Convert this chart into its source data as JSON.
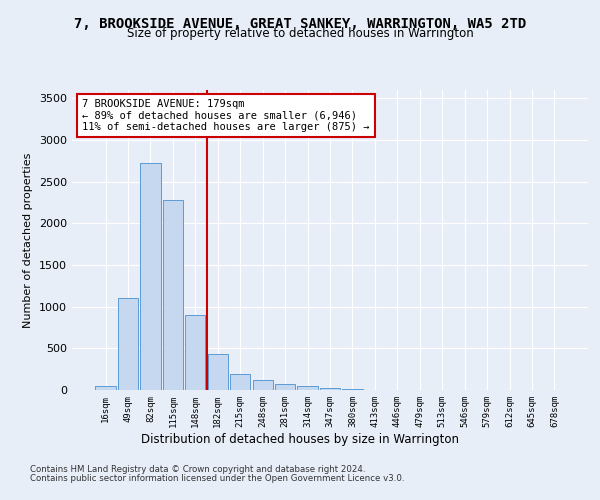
{
  "title": "7, BROOKSIDE AVENUE, GREAT SANKEY, WARRINGTON, WA5 2TD",
  "subtitle": "Size of property relative to detached houses in Warrington",
  "xlabel": "Distribution of detached houses by size in Warrington",
  "ylabel": "Number of detached properties",
  "bar_labels": [
    "16sqm",
    "49sqm",
    "82sqm",
    "115sqm",
    "148sqm",
    "182sqm",
    "215sqm",
    "248sqm",
    "281sqm",
    "314sqm",
    "347sqm",
    "380sqm",
    "413sqm",
    "446sqm",
    "479sqm",
    "513sqm",
    "546sqm",
    "579sqm",
    "612sqm",
    "645sqm",
    "678sqm"
  ],
  "bar_values": [
    50,
    1100,
    2730,
    2280,
    900,
    430,
    195,
    120,
    70,
    45,
    30,
    15,
    5,
    2,
    1,
    0,
    0,
    0,
    0,
    0,
    0
  ],
  "bar_color": "#c5d8f0",
  "bar_edge_color": "#5b9bd5",
  "vline_x": 5,
  "vline_color": "#cc0000",
  "annotation_text": "7 BROOKSIDE AVENUE: 179sqm\n← 89% of detached houses are smaller (6,946)\n11% of semi-detached houses are larger (875) →",
  "annotation_box_color": "#ffffff",
  "annotation_box_edge": "#cc0000",
  "ylim": [
    0,
    3600
  ],
  "yticks": [
    0,
    500,
    1000,
    1500,
    2000,
    2500,
    3000,
    3500
  ],
  "footer1": "Contains HM Land Registry data © Crown copyright and database right 2024.",
  "footer2": "Contains public sector information licensed under the Open Government Licence v3.0.",
  "bg_color": "#e8eef8",
  "plot_bg_color": "#e8eef8"
}
